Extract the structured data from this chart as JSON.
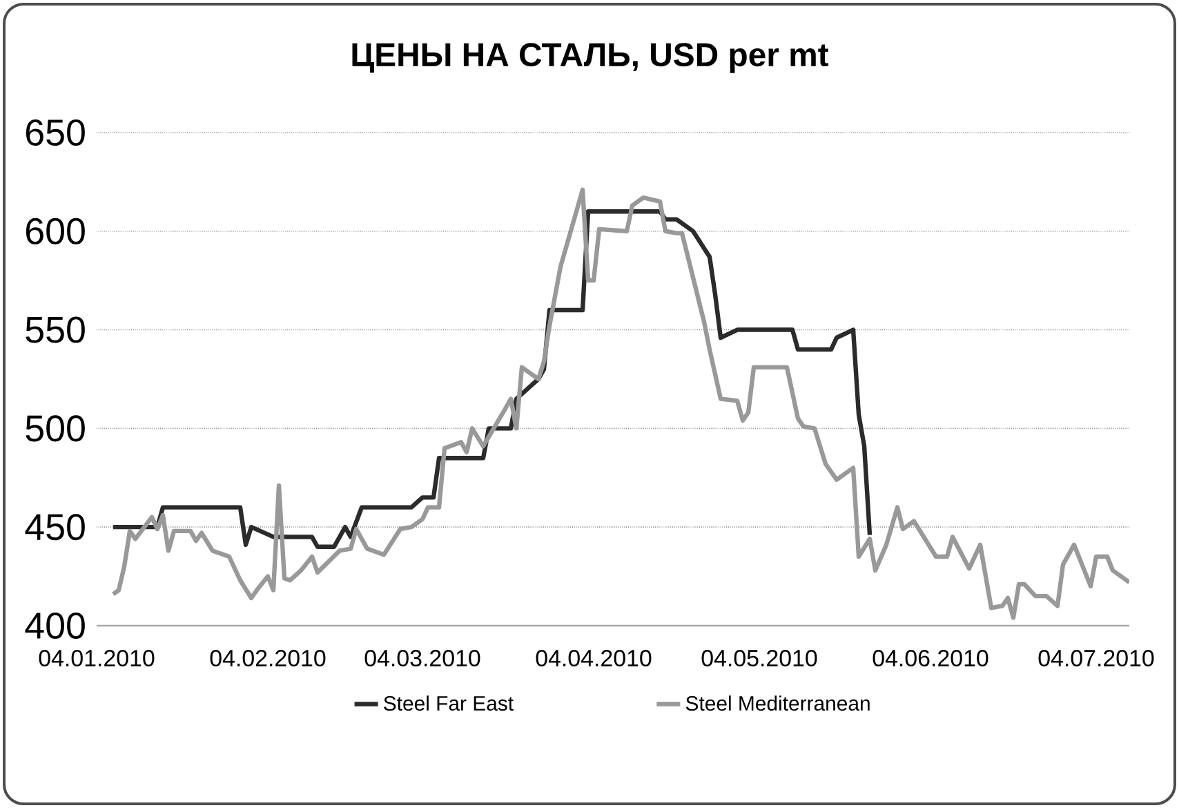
{
  "chart_data": {
    "type": "line",
    "title": "ЦЕНЫ НА СТАЛЬ, USD per mt",
    "x": [
      "2010-01-07",
      "2010-01-15",
      "2010-01-16",
      "2010-01-30",
      "2010-01-31",
      "2010-02-01",
      "2010-02-05",
      "2010-02-12",
      "2010-02-13",
      "2010-02-16",
      "2010-02-18",
      "2010-02-19",
      "2010-02-21",
      "2010-03-02",
      "2010-03-04",
      "2010-03-06",
      "2010-03-07",
      "2010-03-15",
      "2010-03-16",
      "2010-03-20",
      "2010-03-21",
      "2010-03-25",
      "2010-03-26",
      "2010-03-27",
      "2010-04-02",
      "2010-04-03",
      "2010-04-16",
      "2010-04-17",
      "2010-04-19",
      "2010-04-22",
      "2010-04-25",
      "2010-04-26",
      "2010-04-27",
      "2010-04-30",
      "2010-05-10",
      "2010-05-11",
      "2010-05-17",
      "2010-05-18",
      "2010-05-21",
      "2010-05-22",
      "2010-05-23",
      "2010-05-24"
    ],
    "series": [
      {
        "name": "Steel Far East",
        "color": "#2b2b2b",
        "values": [
          450,
          450,
          460,
          460,
          441,
          450,
          445,
          445,
          440,
          440,
          450,
          445,
          460,
          460,
          465,
          465,
          485,
          485,
          500,
          500,
          515,
          525,
          530,
          560,
          560,
          610,
          610,
          606,
          606,
          600,
          587,
          568,
          546,
          550,
          550,
          540,
          540,
          546,
          550,
          507,
          491,
          446
        ]
      },
      {
        "name": "Steel Mediterranean",
        "color": "#999999",
        "x": [
          "2010-01-07",
          "2010-01-08",
          "2010-01-09",
          "2010-01-10",
          "2010-01-11",
          "2010-01-14",
          "2010-01-15",
          "2010-01-16",
          "2010-01-17",
          "2010-01-18",
          "2010-01-21",
          "2010-01-22",
          "2010-01-23",
          "2010-01-25",
          "2010-01-28",
          "2010-01-30",
          "2010-02-01",
          "2010-02-02",
          "2010-02-04",
          "2010-02-05",
          "2010-02-06",
          "2010-02-07",
          "2010-02-08",
          "2010-02-10",
          "2010-02-12",
          "2010-02-13",
          "2010-02-17",
          "2010-02-19",
          "2010-02-20",
          "2010-02-22",
          "2010-02-25",
          "2010-02-28",
          "2010-03-02",
          "2010-03-04",
          "2010-03-05",
          "2010-03-07",
          "2010-03-08",
          "2010-03-11",
          "2010-03-12",
          "2010-03-13",
          "2010-03-15",
          "2010-03-19",
          "2010-03-20",
          "2010-03-21",
          "2010-03-22",
          "2010-03-25",
          "2010-03-26",
          "2010-03-27",
          "2010-03-29",
          "2010-04-02",
          "2010-04-03",
          "2010-04-04",
          "2010-04-05",
          "2010-04-10",
          "2010-04-11",
          "2010-04-13",
          "2010-04-16",
          "2010-04-17",
          "2010-04-19",
          "2010-04-20",
          "2010-04-24",
          "2010-04-25",
          "2010-04-27",
          "2010-04-30",
          "2010-05-01",
          "2010-05-02",
          "2010-05-03",
          "2010-05-09",
          "2010-05-11",
          "2010-05-12",
          "2010-05-14",
          "2010-05-16",
          "2010-05-18",
          "2010-05-21",
          "2010-05-22",
          "2010-05-24",
          "2010-05-25",
          "2010-05-27",
          "2010-05-29",
          "2010-05-30",
          "2010-06-01",
          "2010-06-05",
          "2010-06-07",
          "2010-06-08",
          "2010-06-11",
          "2010-06-13",
          "2010-06-15",
          "2010-06-17",
          "2010-06-18",
          "2010-06-19",
          "2010-06-20",
          "2010-06-21",
          "2010-06-23",
          "2010-06-25",
          "2010-06-27",
          "2010-06-28",
          "2010-06-30",
          "2010-07-03",
          "2010-07-04",
          "2010-07-06",
          "2010-07-07",
          "2010-07-10"
        ],
        "values": [
          416,
          418,
          430,
          448,
          444,
          455,
          449,
          456,
          438,
          448,
          448,
          443,
          447,
          438,
          435,
          423,
          414,
          418,
          425,
          418,
          471,
          424,
          423,
          428,
          435,
          427,
          438,
          439,
          449,
          439,
          436,
          449,
          450,
          454,
          460,
          460,
          490,
          493,
          488,
          500,
          491,
          510,
          515,
          500,
          531,
          525,
          534,
          552,
          582,
          621,
          575,
          575,
          601,
          600,
          613,
          617,
          615,
          600,
          599,
          599,
          554,
          540,
          515,
          514,
          504,
          508,
          531,
          531,
          505,
          501,
          500,
          482,
          474,
          480,
          435,
          444,
          428,
          441,
          460,
          449,
          453,
          435,
          435,
          445,
          429,
          441,
          409,
          410,
          414,
          404,
          421,
          421,
          415,
          415,
          410,
          431,
          441,
          420,
          435,
          435,
          428,
          422
        ]
      }
    ],
    "xlim": [
      "2010-01-04",
      "2010-07-10"
    ],
    "xticks": [
      {
        "value": "2010-01-04",
        "label": "04.01.2010"
      },
      {
        "value": "2010-02-04",
        "label": "04.02.2010"
      },
      {
        "value": "2010-03-04",
        "label": "04.03.2010"
      },
      {
        "value": "2010-04-04",
        "label": "04.04.2010"
      },
      {
        "value": "2010-05-04",
        "label": "04.05.2010"
      },
      {
        "value": "2010-06-04",
        "label": "04.06.2010"
      },
      {
        "value": "2010-07-04",
        "label": "04.07.2010"
      }
    ],
    "ylim": [
      400,
      650
    ],
    "yticks": [
      400,
      450,
      500,
      550,
      600,
      650
    ],
    "grid": "y",
    "legend": "bottom",
    "line_style": "solid",
    "marker": "none"
  }
}
